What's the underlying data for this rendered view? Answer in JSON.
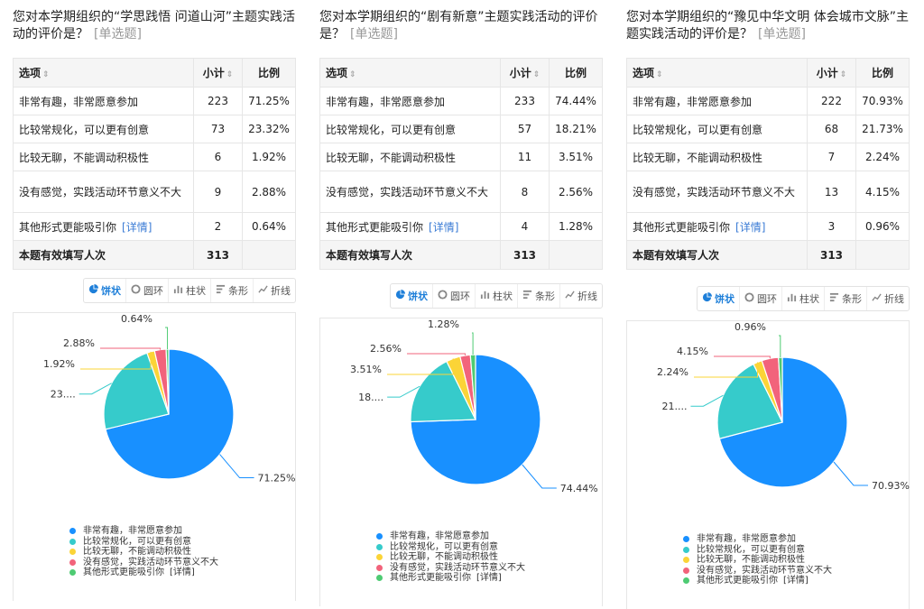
{
  "table_header": {
    "option": "选项",
    "count": "小计",
    "ratio": "比例",
    "sort_glyph": "⇕"
  },
  "detail_label": "[详情]",
  "total_label": "本题有效填写人次",
  "tabs": [
    {
      "label": "饼状",
      "icon": "pie-icon"
    },
    {
      "label": "圆环",
      "icon": "donut-icon"
    },
    {
      "label": "柱状",
      "icon": "bar-icon"
    },
    {
      "label": "条形",
      "icon": "hbar-icon"
    },
    {
      "label": "折线",
      "icon": "line-icon"
    }
  ],
  "colors": [
    "#1890ff",
    "#36cbcb",
    "#fbd437",
    "#f2637b",
    "#4ecb73"
  ],
  "questions": [
    {
      "title": "您对本学期组织的“学思践悟 问道山河”主题实践活动的评价是？",
      "type": "[单选题]",
      "total": "313",
      "rows": [
        {
          "option": "非常有趣，非常愿意参加",
          "count": "223",
          "ratio": "71.25%"
        },
        {
          "option": "比较常规化，可以更有创意",
          "count": "73",
          "ratio": "23.32%"
        },
        {
          "option": "比较无聊，不能调动积极性",
          "count": "6",
          "ratio": "1.92%"
        },
        {
          "option": "没有感觉，实践活动环节意义不大",
          "count": "9",
          "ratio": "2.88%"
        },
        {
          "option": "其他形式更能吸引你",
          "count": "2",
          "ratio": "0.64%"
        }
      ],
      "slice_labels": [
        "71.25%",
        "23....",
        "1.92%",
        "2.88%",
        "0.64%"
      ]
    },
    {
      "title": "您对本学期组织的“剧有新意”主题实践活动的评价是？",
      "type": "[单选题]",
      "total": "313",
      "rows": [
        {
          "option": "非常有趣，非常愿意参加",
          "count": "233",
          "ratio": "74.44%"
        },
        {
          "option": "比较常规化，可以更有创意",
          "count": "57",
          "ratio": "18.21%"
        },
        {
          "option": "比较无聊，不能调动积极性",
          "count": "11",
          "ratio": "3.51%"
        },
        {
          "option": "没有感觉，实践活动环节意义不大",
          "count": "8",
          "ratio": "2.56%"
        },
        {
          "option": "其他形式更能吸引你",
          "count": "4",
          "ratio": "1.28%"
        }
      ],
      "slice_labels": [
        "74.44%",
        "18....",
        "3.51%",
        "2.56%",
        "1.28%"
      ]
    },
    {
      "title": "您对本学期组织的“豫见中华文明 体会城市文脉”主题实践活动的评价是？",
      "type": "[单选题]",
      "total": "313",
      "rows": [
        {
          "option": "非常有趣，非常愿意参加",
          "count": "222",
          "ratio": "70.93%"
        },
        {
          "option": "比较常规化，可以更有创意",
          "count": "68",
          "ratio": "21.73%"
        },
        {
          "option": "比较无聊，不能调动积极性",
          "count": "7",
          "ratio": "2.24%"
        },
        {
          "option": "没有感觉，实践活动环节意义不大",
          "count": "13",
          "ratio": "4.15%"
        },
        {
          "option": "其他形式更能吸引你",
          "count": "3",
          "ratio": "0.96%"
        }
      ],
      "slice_labels": [
        "70.93%",
        "21....",
        "2.24%",
        "4.15%",
        "0.96%"
      ]
    }
  ],
  "chart_data": [
    {
      "type": "pie",
      "categories": [
        "非常有趣，非常愿意参加",
        "比较常规化，可以更有创意",
        "比较无聊，不能调动积极性",
        "没有感觉，实践活动环节意义不大",
        "其他形式更能吸引你"
      ],
      "values": [
        71.25,
        23.32,
        1.92,
        2.88,
        0.64
      ],
      "legend": "bottom"
    },
    {
      "type": "pie",
      "categories": [
        "非常有趣，非常愿意参加",
        "比较常规化，可以更有创意",
        "比较无聊，不能调动积极性",
        "没有感觉，实践活动环节意义不大",
        "其他形式更能吸引你"
      ],
      "values": [
        74.44,
        18.21,
        3.51,
        2.56,
        1.28
      ],
      "legend": "bottom"
    },
    {
      "type": "pie",
      "categories": [
        "非常有趣，非常愿意参加",
        "比较常规化，可以更有创意",
        "比较无聊，不能调动积极性",
        "没有感觉，实践活动环节意义不大",
        "其他形式更能吸引你"
      ],
      "values": [
        70.93,
        21.73,
        2.24,
        4.15,
        0.96
      ],
      "legend": "bottom"
    }
  ]
}
